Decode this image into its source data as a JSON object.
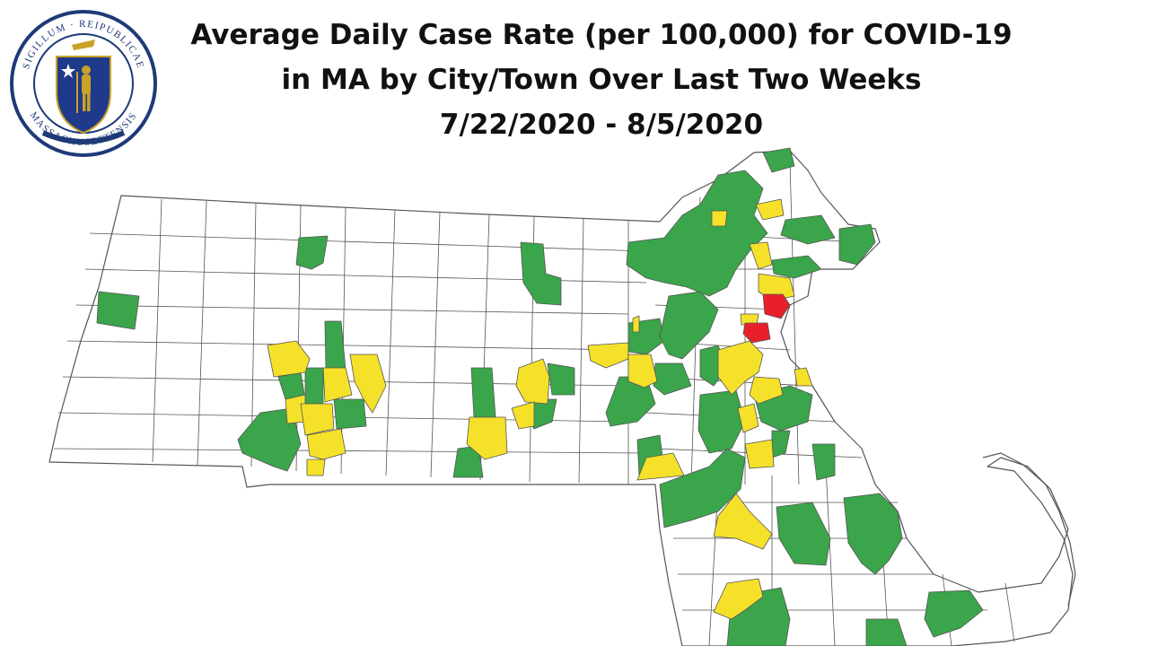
{
  "title": {
    "line1": "Average Daily Case Rate (per 100,000) for COVID-19",
    "line2": "in MA by City/Town Over Last Two Weeks",
    "line3": "7/22/2020 - 8/5/2020"
  },
  "seal": {
    "icon": "massachusetts-state-seal",
    "ring_text": "SIGILLUM REIPUBLICAE MASSACHUSETTENSIS",
    "ring_color": "#1e3a78",
    "shield_color": "#1f3a8a",
    "figure_color": "#c9a227"
  },
  "map": {
    "region": "Massachusetts cities and towns",
    "colors": {
      "none": "#ffffff",
      "green": "#3aa54a",
      "yellow": "#f5e12a",
      "red": "#e8202a",
      "border": "#555555"
    }
  }
}
